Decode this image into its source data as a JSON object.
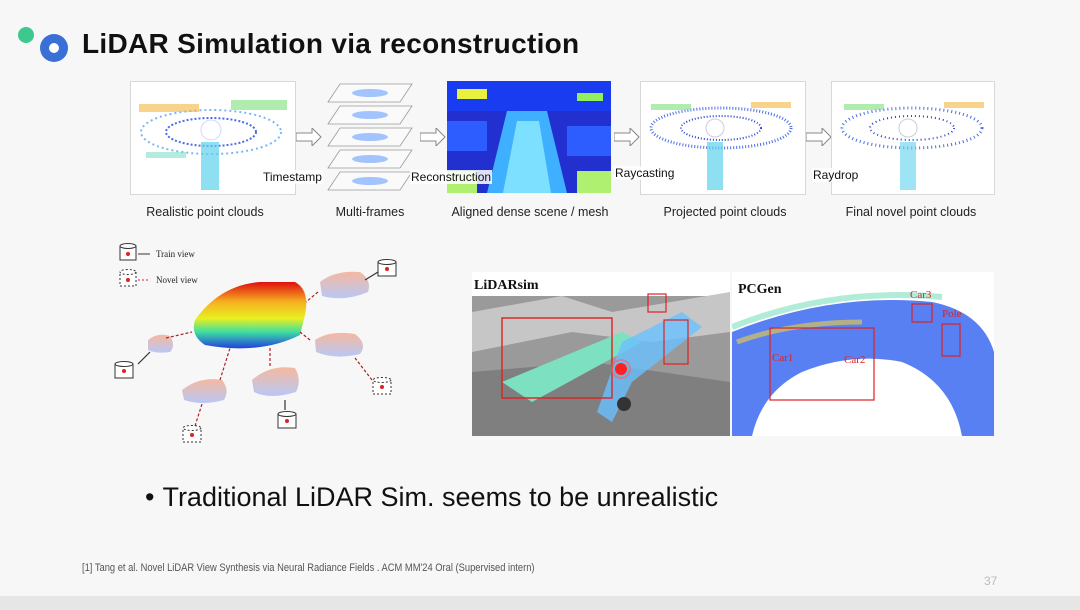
{
  "slide": {
    "title": "LiDAR Simulation via reconstruction",
    "bullet": "Traditional LiDAR Sim. seems to be unrealistic",
    "footnote": "[1] Tang et al. Novel LiDAR View Synthesis via Neural Radiance Fields . ACM MM'24 Oral (Supervised intern)",
    "page_number": "37"
  },
  "pipeline": {
    "captions": [
      "Realistic point clouds",
      "Multi-frames",
      "Aligned dense scene / mesh",
      "Projected point clouds",
      "Final novel point clouds"
    ],
    "steps": [
      "Timestamp",
      "Reconstruction",
      "Raycasting",
      "Raydrop"
    ]
  },
  "views_figure": {
    "legend_train": "Train view",
    "legend_novel": "Novel view"
  },
  "comparison": {
    "left_title": "LiDARsim",
    "right_title": "PCGen",
    "labels": [
      "Car1",
      "Car2",
      "Car3",
      "Pole"
    ]
  },
  "colors": {
    "accent_blue": "#3a6fd8",
    "accent_green": "#3cc88f",
    "highlight_red": "#dd2222"
  }
}
